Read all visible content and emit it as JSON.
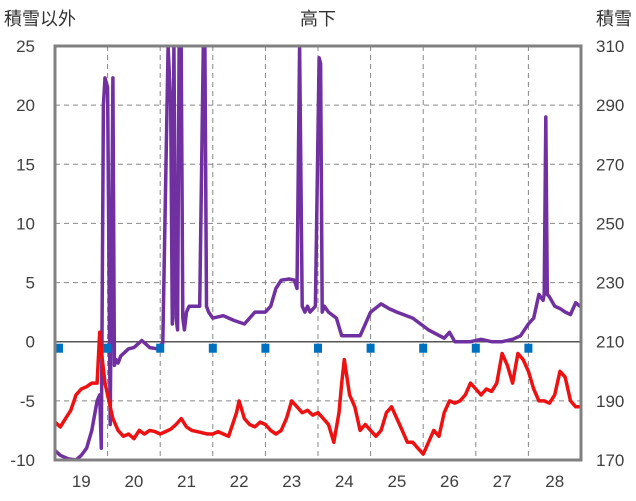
{
  "chart_data": {
    "type": "line",
    "title": "高下",
    "ylabel_left": "積雪以外",
    "ylabel_right": "積雪",
    "xlabel": "",
    "xlim": [
      18.5,
      28.5
    ],
    "ylim_left": [
      -10,
      25
    ],
    "ylim_right": [
      170,
      310
    ],
    "x_ticks": [
      "19",
      "20",
      "21",
      "22",
      "23",
      "24",
      "25",
      "26",
      "27",
      "28"
    ],
    "y_ticks_left": [
      "25",
      "20",
      "15",
      "10",
      "5",
      "0",
      "-5",
      "-10"
    ],
    "y_ticks_right": [
      "310",
      "290",
      "270",
      "250",
      "230",
      "210",
      "190",
      "170"
    ],
    "grid": true,
    "legend": "none",
    "series": [
      {
        "axis": "left",
        "color": "#7030A0",
        "x": [
          18.5,
          18.6,
          18.75,
          18.9,
          19.0,
          19.1,
          19.2,
          19.3,
          19.35,
          19.38,
          19.42,
          19.45,
          19.5,
          19.55,
          19.6,
          19.63,
          19.66,
          19.7,
          19.75,
          19.9,
          20.0,
          20.15,
          20.3,
          20.45,
          20.55,
          20.65,
          20.7,
          20.73,
          20.76,
          20.8,
          20.83,
          20.86,
          20.9,
          20.93,
          20.96,
          21.0,
          21.05,
          21.15,
          21.25,
          21.32,
          21.35,
          21.38,
          21.42,
          21.5,
          21.7,
          21.9,
          22.1,
          22.3,
          22.5,
          22.6,
          22.7,
          22.8,
          22.95,
          23.05,
          23.1,
          23.15,
          23.2,
          23.25,
          23.3,
          23.35,
          23.45,
          23.52,
          23.55,
          23.58,
          23.62,
          23.7,
          23.85,
          23.95,
          24.1,
          24.3,
          24.5,
          24.7,
          24.85,
          25.0,
          25.3,
          25.6,
          25.9,
          26.0,
          26.1,
          26.2,
          26.4,
          26.6,
          26.8,
          27.0,
          27.2,
          27.35,
          27.5,
          27.6,
          27.7,
          27.78,
          27.8,
          27.83,
          27.86,
          27.9,
          28.0,
          28.1,
          28.2,
          28.3,
          28.4,
          28.48
        ],
        "values": [
          -9.2,
          -9.6,
          -9.9,
          -10.0,
          -9.6,
          -9.0,
          -7.5,
          -5.0,
          -4.5,
          -9.0,
          20.0,
          22.3,
          21.5,
          -7.0,
          22.3,
          -2.0,
          -1.5,
          -1.8,
          -1.2,
          -0.6,
          -0.5,
          0.1,
          -0.5,
          -0.6,
          -0.1,
          25,
          20.0,
          1.5,
          25,
          2.0,
          1.0,
          25,
          25,
          2.0,
          1.0,
          2.5,
          3.0,
          3.0,
          3.0,
          25,
          25,
          3.0,
          2.5,
          2.0,
          2.2,
          1.8,
          1.5,
          2.5,
          2.5,
          3.0,
          4.5,
          5.2,
          5.3,
          5.2,
          4.5,
          25,
          3.0,
          2.5,
          3.0,
          2.5,
          3.0,
          24.0,
          23.5,
          2.5,
          3.0,
          2.5,
          2.0,
          0.5,
          0.5,
          0.5,
          2.5,
          3.2,
          2.8,
          2.5,
          2.0,
          1.0,
          0.3,
          0.8,
          0.0,
          0.0,
          0.0,
          0.2,
          0.0,
          0.0,
          0.2,
          0.5,
          1.5,
          2.0,
          4.0,
          3.5,
          4.0,
          19.0,
          4.0,
          3.8,
          3.0,
          2.8,
          2.5,
          2.3,
          3.3,
          3.0
        ]
      },
      {
        "axis": "left",
        "color": "#EE1111",
        "x": [
          18.5,
          18.6,
          18.7,
          18.8,
          18.9,
          19.0,
          19.1,
          19.2,
          19.3,
          19.35,
          19.4,
          19.45,
          19.5,
          19.55,
          19.6,
          19.7,
          19.8,
          19.9,
          20.0,
          20.1,
          20.2,
          20.3,
          20.4,
          20.5,
          20.6,
          20.7,
          20.8,
          20.9,
          21.0,
          21.1,
          21.2,
          21.3,
          21.4,
          21.5,
          21.6,
          21.7,
          21.8,
          21.95,
          22.0,
          22.1,
          22.2,
          22.3,
          22.4,
          22.5,
          22.6,
          22.7,
          22.8,
          22.9,
          23.0,
          23.1,
          23.2,
          23.3,
          23.4,
          23.5,
          23.6,
          23.7,
          23.8,
          23.9,
          23.95,
          24.0,
          24.1,
          24.2,
          24.3,
          24.4,
          24.5,
          24.6,
          24.7,
          24.8,
          24.9,
          25.0,
          25.1,
          25.2,
          25.3,
          25.4,
          25.5,
          25.6,
          25.7,
          25.8,
          25.9,
          26.0,
          26.1,
          26.2,
          26.3,
          26.4,
          26.5,
          26.6,
          26.7,
          26.8,
          26.9,
          27.0,
          27.1,
          27.2,
          27.3,
          27.4,
          27.5,
          27.6,
          27.7,
          27.8,
          27.9,
          28.0,
          28.1,
          28.2,
          28.3,
          28.4,
          28.48
        ],
        "values": [
          -6.8,
          -7.2,
          -6.5,
          -5.8,
          -4.5,
          -4.0,
          -3.8,
          -3.5,
          -3.5,
          0.8,
          -1.5,
          -3.5,
          -4.5,
          -5.5,
          -6.5,
          -7.5,
          -8.0,
          -7.8,
          -8.2,
          -7.5,
          -7.8,
          -7.5,
          -7.6,
          -7.8,
          -7.6,
          -7.4,
          -7.0,
          -6.5,
          -7.2,
          -7.5,
          -7.6,
          -7.7,
          -7.8,
          -7.8,
          -7.6,
          -7.8,
          -8.0,
          -6.0,
          -5.0,
          -6.5,
          -7.0,
          -7.2,
          -6.8,
          -7.0,
          -7.5,
          -7.8,
          -7.5,
          -6.5,
          -5.0,
          -5.5,
          -6.0,
          -5.8,
          -6.2,
          -6.0,
          -6.5,
          -7.0,
          -8.5,
          -6.0,
          -3.5,
          -1.5,
          -4.5,
          -5.5,
          -7.5,
          -7.0,
          -7.5,
          -8.0,
          -7.5,
          -6.0,
          -5.5,
          -6.5,
          -7.5,
          -8.5,
          -8.5,
          -9.0,
          -9.5,
          -8.5,
          -7.5,
          -8.0,
          -6.0,
          -5.0,
          -5.2,
          -5.0,
          -4.5,
          -3.5,
          -4.0,
          -4.5,
          -4.0,
          -4.2,
          -3.5,
          -1.0,
          -2.0,
          -3.5,
          -1.0,
          -1.5,
          -2.5,
          -4.0,
          -5.0,
          -5.0,
          -5.2,
          -4.5,
          -2.5,
          -3.0,
          -5.0,
          -5.5,
          -5.5
        ]
      }
    ],
    "markers": {
      "color": "#0070C0",
      "x": [
        18.5,
        19.5,
        20.5,
        21.5,
        22.5,
        23.5,
        24.5,
        25.5,
        26.5,
        27.5
      ],
      "y": [
        0,
        0,
        0,
        0,
        0,
        0,
        0,
        0,
        0,
        0
      ]
    }
  }
}
